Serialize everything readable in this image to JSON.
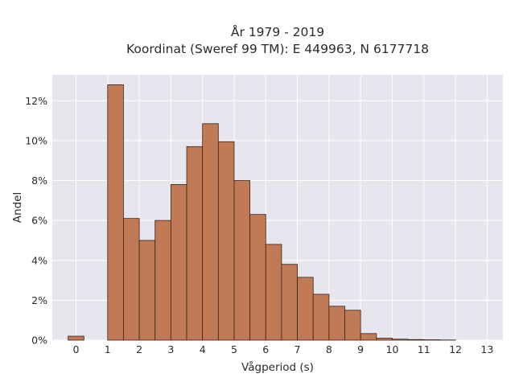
{
  "chart_data": {
    "type": "bar",
    "title": "År 1979 - 2019",
    "subtitle": "Koordinat (Sweref 99 TM): E 449963, N 6177718",
    "xlabel": "Vågperiod (s)",
    "ylabel": "Andel",
    "xlim": [
      -0.75,
      13.5
    ],
    "ylim": [
      0,
      13.3
    ],
    "bin_width": 0.5,
    "x_ticks": [
      0,
      1,
      2,
      3,
      4,
      5,
      6,
      7,
      8,
      9,
      10,
      11,
      12,
      13
    ],
    "y_ticks": [
      0,
      2,
      4,
      6,
      8,
      10,
      12
    ],
    "y_tick_suffix": "%",
    "grid": true,
    "bar_color": "#c07a55",
    "bar_edge_color": "#3a2318",
    "background_color": "#e6e6ef",
    "bins": [
      {
        "x0": -0.25,
        "value": 0.2
      },
      {
        "x0": 1.0,
        "value": 12.8
      },
      {
        "x0": 1.5,
        "value": 6.1
      },
      {
        "x0": 2.0,
        "value": 5.0
      },
      {
        "x0": 2.5,
        "value": 6.0
      },
      {
        "x0": 3.0,
        "value": 7.8
      },
      {
        "x0": 3.5,
        "value": 9.7
      },
      {
        "x0": 4.0,
        "value": 10.85
      },
      {
        "x0": 4.5,
        "value": 9.95
      },
      {
        "x0": 5.0,
        "value": 8.0
      },
      {
        "x0": 5.5,
        "value": 6.3
      },
      {
        "x0": 6.0,
        "value": 4.8
      },
      {
        "x0": 6.5,
        "value": 3.8
      },
      {
        "x0": 7.0,
        "value": 3.15
      },
      {
        "x0": 7.5,
        "value": 2.3
      },
      {
        "x0": 8.0,
        "value": 1.7
      },
      {
        "x0": 8.5,
        "value": 1.5
      },
      {
        "x0": 9.0,
        "value": 0.33
      },
      {
        "x0": 9.5,
        "value": 0.1
      },
      {
        "x0": 10.0,
        "value": 0.05
      },
      {
        "x0": 10.5,
        "value": 0.03
      },
      {
        "x0": 11.0,
        "value": 0.02
      },
      {
        "x0": 11.5,
        "value": 0.01
      }
    ]
  }
}
